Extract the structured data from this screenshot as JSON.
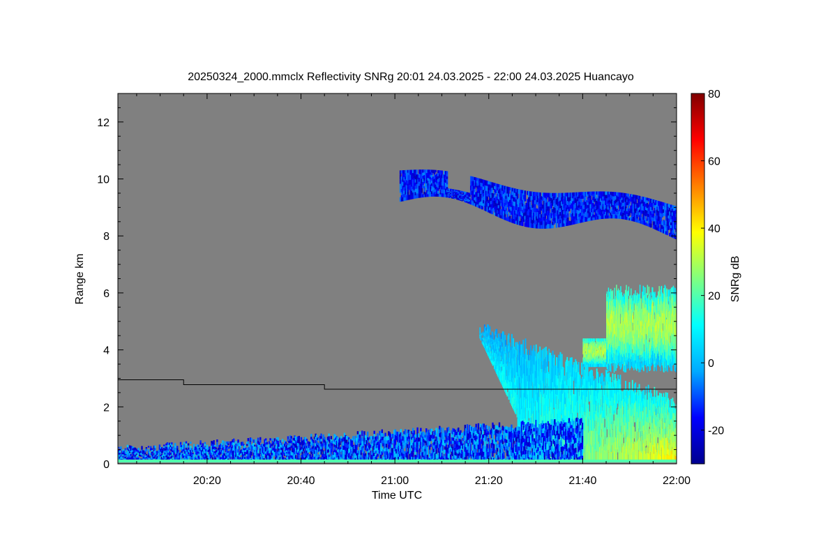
{
  "chart_data": {
    "type": "heatmap",
    "title": "20250324_2000.mmclx Reflectivity SNRg   20:01 24.03.2025 - 22:00 24.03.2025 Huancayo",
    "xlabel": "Time UTC",
    "ylabel": "Range km",
    "colorbar_label": "SNRg dB",
    "x_range_minutes_utc": [
      1201,
      1320
    ],
    "y_range_km": [
      0,
      13
    ],
    "color_range_db": [
      -30,
      80
    ],
    "x_ticks": [
      {
        "minute": 1220,
        "label": "20:20"
      },
      {
        "minute": 1240,
        "label": "20:40"
      },
      {
        "minute": 1260,
        "label": "21:00"
      },
      {
        "minute": 1280,
        "label": "21:20"
      },
      {
        "minute": 1300,
        "label": "21:40"
      },
      {
        "minute": 1320,
        "label": "22:00"
      }
    ],
    "y_ticks": [
      {
        "value": 0,
        "label": "0"
      },
      {
        "value": 2,
        "label": "2"
      },
      {
        "value": 4,
        "label": "4"
      },
      {
        "value": 6,
        "label": "6"
      },
      {
        "value": 8,
        "label": "8"
      },
      {
        "value": 10,
        "label": "10"
      },
      {
        "value": 12,
        "label": "12"
      }
    ],
    "colorbar_ticks": [
      {
        "value": -20,
        "label": "-20"
      },
      {
        "value": 0,
        "label": "0"
      },
      {
        "value": 20,
        "label": "20"
      },
      {
        "value": 40,
        "label": "40"
      },
      {
        "value": 60,
        "label": "60"
      },
      {
        "value": 80,
        "label": "80"
      }
    ],
    "background_color": "#808080",
    "colormap": [
      "#00008f",
      "#0000ff",
      "#00aaff",
      "#00ffff",
      "#80ff80",
      "#ffff00",
      "#ff8000",
      "#ff0000",
      "#800000"
    ],
    "step_line": [
      {
        "minute": 1201,
        "km": 2.95
      },
      {
        "minute": 1215,
        "km": 2.95
      },
      {
        "minute": 1215,
        "km": 2.78
      },
      {
        "minute": 1245,
        "km": 2.78
      },
      {
        "minute": 1245,
        "km": 2.62
      },
      {
        "minute": 1320,
        "km": 2.62
      }
    ],
    "echo_regions": [
      {
        "name": "high cirrus layer",
        "minute_range": [
          1261,
          1320
        ],
        "km_range": [
          7.9,
          10.3
        ],
        "snr_db": [
          -25,
          -5
        ]
      },
      {
        "name": "mid cloud",
        "minute_range": [
          1300,
          1320
        ],
        "km_range": [
          3.2,
          6.3
        ],
        "snr_db": [
          -15,
          35
        ]
      },
      {
        "name": "precipitation plume",
        "minute_range": [
          1278,
          1320
        ],
        "km_range": [
          0.1,
          4.4
        ],
        "snr_db": [
          -10,
          45
        ]
      },
      {
        "name": "boundary layer clutter",
        "minute_range": [
          1201,
          1300
        ],
        "km_range": [
          0.05,
          1.4
        ],
        "snr_db": [
          -25,
          10
        ]
      }
    ]
  }
}
